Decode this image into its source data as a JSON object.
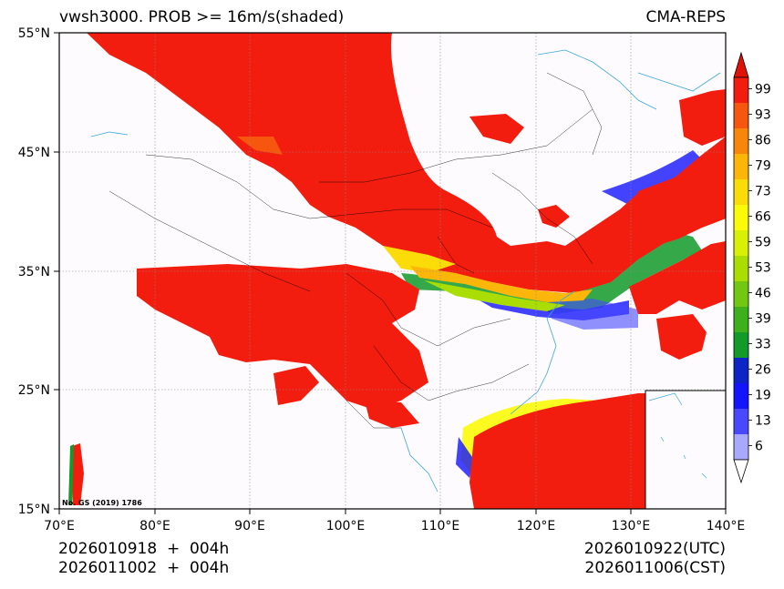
{
  "header": {
    "title_left": "vwsh3000. PROB >= 16m/s(shaded)",
    "title_right": "CMA-REPS"
  },
  "axes": {
    "lat_ticks": [
      "55°N",
      "45°N",
      "35°N",
      "25°N",
      "15°N"
    ],
    "lon_ticks": [
      "70°E",
      "80°E",
      "90°E",
      "100°E",
      "110°E",
      "120°E",
      "130°E",
      "140°E"
    ],
    "lat_range": [
      15,
      55
    ],
    "lon_range": [
      70,
      140
    ]
  },
  "watermark": "No. GS (2019) 1786",
  "colorbar": {
    "levels": [
      "99",
      "93",
      "86",
      "79",
      "73",
      "66",
      "59",
      "53",
      "46",
      "39",
      "33",
      "26",
      "19",
      "13",
      "6"
    ],
    "colors": [
      "#f31d0f",
      "#f7560e",
      "#f8860b",
      "#fcb60a",
      "#fcdc08",
      "#fbfb09",
      "#d8ef06",
      "#a9dd04",
      "#71c712",
      "#3eb01c",
      "#129a2a",
      "#0d25c6",
      "#1414ff",
      "#4848ff",
      "#a9a9fc"
    ],
    "top_color": "#e01208"
  },
  "footer": {
    "init_utc": "2026010918  +  004h",
    "init_cst": "2026011002  +  004h",
    "valid_utc": "2026010922(UTC)",
    "valid_cst": "2026011006(CST)"
  }
}
